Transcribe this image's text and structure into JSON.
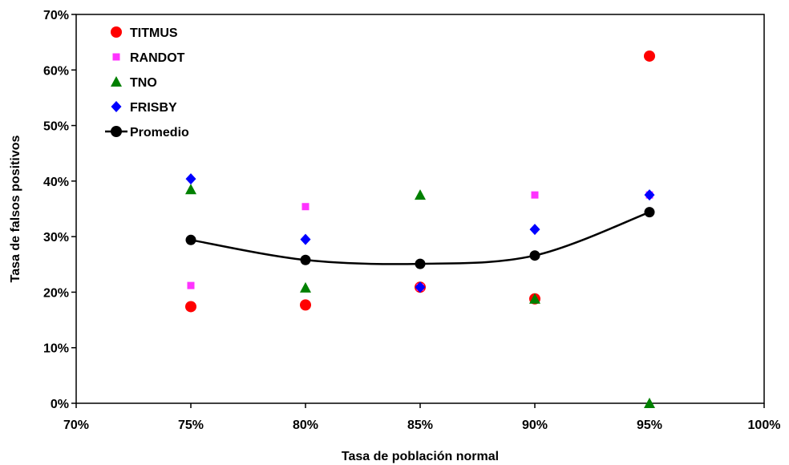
{
  "chart_data": {
    "type": "scatter",
    "xlabel": "Tasa de población normal",
    "ylabel": "Tasa de falsos positivos",
    "xlim": [
      0.7,
      1.0
    ],
    "ylim": [
      0.0,
      0.7
    ],
    "x_ticks": [
      0.7,
      0.75,
      0.8,
      0.85,
      0.9,
      0.95,
      1.0
    ],
    "x_tick_labels": [
      "70%",
      "75%",
      "80%",
      "85%",
      "90%",
      "95%",
      "100%"
    ],
    "y_ticks": [
      0.0,
      0.1,
      0.2,
      0.3,
      0.4,
      0.5,
      0.6,
      0.7
    ],
    "y_tick_labels": [
      "0%",
      "10%",
      "20%",
      "30%",
      "40%",
      "50%",
      "60%",
      "70%"
    ],
    "grid": false,
    "legend_position": "top-left",
    "series": [
      {
        "name": "TITMUS",
        "marker": "circle",
        "color": "#ff0000",
        "points": [
          [
            0.75,
            0.174
          ],
          [
            0.8,
            0.177
          ],
          [
            0.85,
            0.209
          ],
          [
            0.9,
            0.188
          ],
          [
            0.95,
            0.625
          ]
        ]
      },
      {
        "name": "RANDOT",
        "marker": "square",
        "color": "#ff33ff",
        "points": [
          [
            0.75,
            0.212
          ],
          [
            0.8,
            0.354
          ],
          [
            0.85,
            0.209
          ],
          [
            0.9,
            0.375
          ],
          [
            0.95,
            0.375
          ]
        ]
      },
      {
        "name": "TNO",
        "marker": "triangle",
        "color": "#008000",
        "points": [
          [
            0.75,
            0.385
          ],
          [
            0.8,
            0.208
          ],
          [
            0.85,
            0.375
          ],
          [
            0.9,
            0.188
          ],
          [
            0.95,
            0.0
          ]
        ]
      },
      {
        "name": "FRISBY",
        "marker": "diamond",
        "color": "#0000ff",
        "points": [
          [
            0.75,
            0.404
          ],
          [
            0.8,
            0.295
          ],
          [
            0.85,
            0.209
          ],
          [
            0.9,
            0.313
          ],
          [
            0.95,
            0.375
          ]
        ]
      },
      {
        "name": "Promedio",
        "marker": "circle-line",
        "color": "#000000",
        "points": [
          [
            0.75,
            0.294
          ],
          [
            0.8,
            0.258
          ],
          [
            0.85,
            0.251
          ],
          [
            0.9,
            0.266
          ],
          [
            0.95,
            0.344
          ]
        ]
      }
    ]
  }
}
